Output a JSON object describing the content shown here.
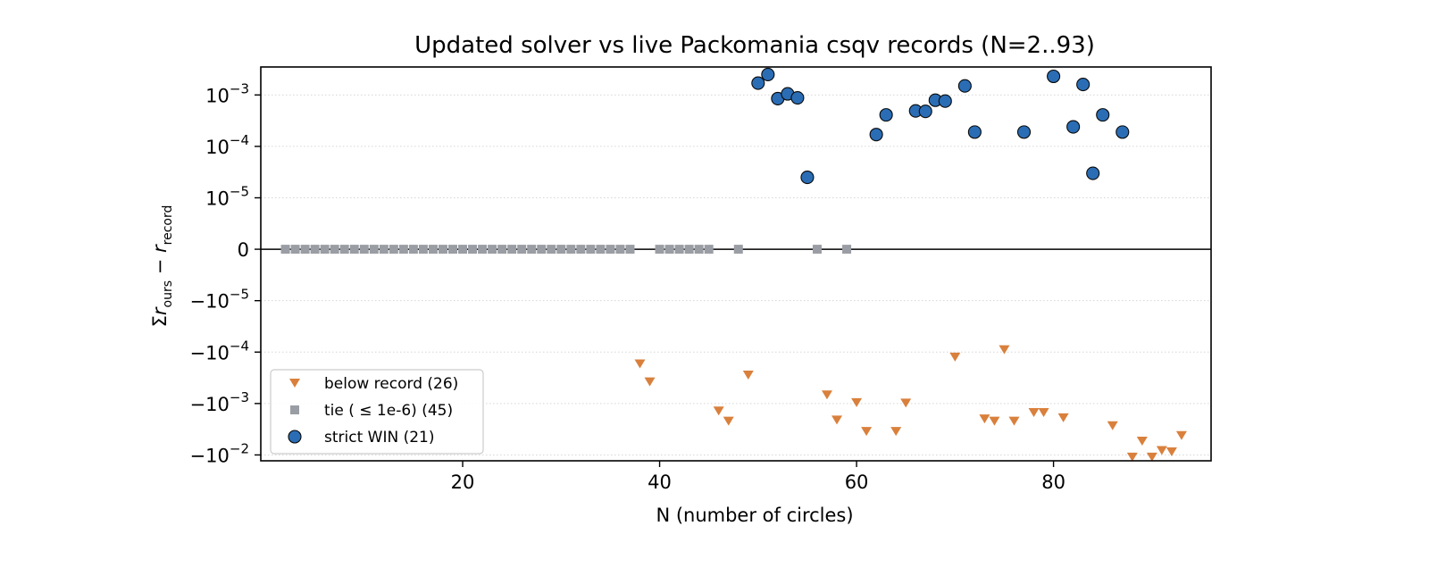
{
  "chart_data": {
    "type": "scatter",
    "title": "Updated solver vs live Packomania csqv records (N=2..93)",
    "xlabel": "N (number of circles)",
    "ylabel": "Σr_ours − Σr_record",
    "ylabel_parts": {
      "sigma": "Σ",
      "r": "r",
      "sub1": "ours",
      "minus": " − ",
      "sub2": "record"
    },
    "xlim": [
      -0.5,
      96
    ],
    "x_ticks": [
      20,
      40,
      60,
      80
    ],
    "y_scale": "symlog",
    "y_linthresh": 1e-05,
    "ylim": [
      -0.013,
      0.0035
    ],
    "y_ticks": [
      {
        "value": 0.001,
        "label": "10^-3"
      },
      {
        "value": 0.0001,
        "label": "10^-4"
      },
      {
        "value": 1e-05,
        "label": "10^-5"
      },
      {
        "value": 0,
        "label": "0"
      },
      {
        "value": -1e-05,
        "label": "−10^-5"
      },
      {
        "value": -0.0001,
        "label": "−10^-4"
      },
      {
        "value": -0.001,
        "label": "−10^-3"
      },
      {
        "value": -0.01,
        "label": "−10^-2"
      }
    ],
    "grid": "horizontal-dotted",
    "legend_position": "lower-left",
    "colors": {
      "win": "#2a6db5",
      "tie": "#9a9ea4",
      "below": "#d9803c"
    },
    "series": [
      {
        "name": "strict WIN (21)",
        "marker": "circle",
        "x": [
          50,
          51,
          52,
          53,
          54,
          55,
          62,
          63,
          66,
          67,
          68,
          69,
          71,
          72,
          77,
          80,
          82,
          83,
          84,
          85,
          87
        ],
        "y": [
          0.0017,
          0.0025,
          0.00085,
          0.00105,
          0.00088,
          2.5e-05,
          0.00017,
          0.00041,
          0.00049,
          0.00048,
          0.00079,
          0.00076,
          0.0015,
          0.00019,
          0.00019,
          0.0023,
          0.00024,
          0.0016,
          3e-05,
          0.00041,
          0.00019
        ]
      },
      {
        "name": "tie ( ≤ 1e-6) (45)",
        "marker": "square",
        "x": [
          2,
          3,
          4,
          5,
          6,
          7,
          8,
          9,
          10,
          11,
          12,
          13,
          14,
          15,
          16,
          17,
          18,
          19,
          20,
          21,
          22,
          23,
          24,
          25,
          26,
          27,
          28,
          29,
          30,
          31,
          32,
          33,
          34,
          35,
          36,
          37,
          40,
          41,
          42,
          43,
          44,
          45,
          48,
          56,
          59
        ],
        "y": [
          0,
          0,
          0,
          0,
          0,
          0,
          0,
          0,
          0,
          0,
          0,
          0,
          0,
          0,
          0,
          0,
          0,
          0,
          0,
          0,
          0,
          0,
          0,
          0,
          0,
          0,
          0,
          0,
          0,
          0,
          0,
          0,
          0,
          0,
          0,
          0,
          0,
          0,
          0,
          0,
          0,
          0,
          0,
          0,
          0
        ]
      },
      {
        "name": "below record (26)",
        "marker": "triangle-down",
        "x": [
          38,
          39,
          46,
          47,
          49,
          57,
          58,
          60,
          61,
          64,
          65,
          70,
          73,
          74,
          75,
          76,
          78,
          79,
          81,
          86,
          88,
          89,
          90,
          91,
          92,
          93
        ],
        "y": [
          -0.00017,
          -0.00038,
          -0.0014,
          -0.0022,
          -0.00028,
          -0.00068,
          -0.0021,
          -0.00096,
          -0.0035,
          -0.0035,
          -0.00098,
          -0.000125,
          -0.002,
          -0.0022,
          -9e-05,
          -0.0022,
          -0.0015,
          -0.0015,
          -0.0019,
          -0.0027,
          -0.011,
          -0.0054,
          -0.011,
          -0.0082,
          -0.0087,
          -0.0042
        ]
      }
    ],
    "legend": [
      {
        "label": "below record (26)",
        "marker": "triangle-down"
      },
      {
        "label": "tie ( ≤ 1e-6) (45)",
        "marker": "square"
      },
      {
        "label": "strict WIN (21)",
        "marker": "circle"
      }
    ]
  }
}
